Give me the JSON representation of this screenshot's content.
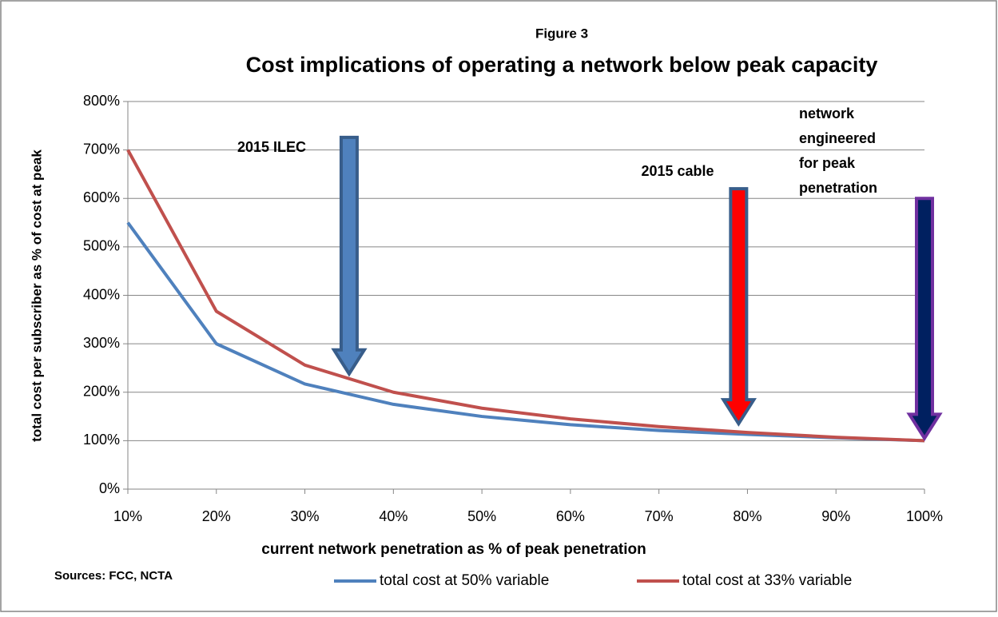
{
  "chart_data": {
    "type": "line",
    "subtitle": "Figure 3",
    "title": "Cost implications of operating a network below peak capacity",
    "x_label": "current network penetration as % of peak penetration",
    "y_label": "total cost per subscriber as % of cost at peak",
    "source": "Sources:  FCC, NCTA",
    "x": [
      10,
      20,
      30,
      40,
      50,
      60,
      70,
      80,
      90,
      100
    ],
    "series": [
      {
        "name": "total cost at 50% variable",
        "color": "#4f81bd",
        "values": [
          550,
          300,
          217,
          175,
          150,
          133,
          121,
          113,
          106,
          100
        ]
      },
      {
        "name": "total cost at 33% variable",
        "color": "#c0504d",
        "values": [
          700,
          367,
          256,
          200,
          167,
          145,
          129,
          117,
          107,
          100
        ]
      }
    ],
    "xlim": [
      10,
      100
    ],
    "xticks": [
      {
        "value": 10,
        "label": "10%"
      },
      {
        "value": 20,
        "label": "20%"
      },
      {
        "value": 30,
        "label": "30%"
      },
      {
        "value": 40,
        "label": "40%"
      },
      {
        "value": 50,
        "label": "50%"
      },
      {
        "value": 60,
        "label": "60%"
      },
      {
        "value": 70,
        "label": "70%"
      },
      {
        "value": 80,
        "label": "80%"
      },
      {
        "value": 90,
        "label": "90%"
      },
      {
        "value": 100,
        "label": "100%"
      }
    ],
    "ylim": [
      0,
      800
    ],
    "yticks": [
      {
        "value": 0,
        "label": "0%"
      },
      {
        "value": 100,
        "label": "100%"
      },
      {
        "value": 200,
        "label": "200%"
      },
      {
        "value": 300,
        "label": "300%"
      },
      {
        "value": 400,
        "label": "400%"
      },
      {
        "value": 500,
        "label": "500%"
      },
      {
        "value": 600,
        "label": "600%"
      },
      {
        "value": 700,
        "label": "700%"
      },
      {
        "value": 800,
        "label": "800%"
      }
    ],
    "grid": true,
    "legend": "bottom",
    "annotations": [
      {
        "lines": [
          "2015 ILEC"
        ],
        "x": 35,
        "y_start": 726,
        "y_end": 238,
        "fill": "#4f81bd",
        "stroke": "#385d8a"
      },
      {
        "lines": [
          "2015 cable"
        ],
        "x": 79,
        "y_start": 620,
        "y_end": 135,
        "fill": "#ff0000",
        "stroke": "#385d8a"
      },
      {
        "lines": [
          "network",
          "engineered",
          "for peak",
          "penetration"
        ],
        "x": 100,
        "y_start": 600,
        "y_end": 105,
        "fill": "#002060",
        "stroke": "#7030a0"
      }
    ]
  }
}
